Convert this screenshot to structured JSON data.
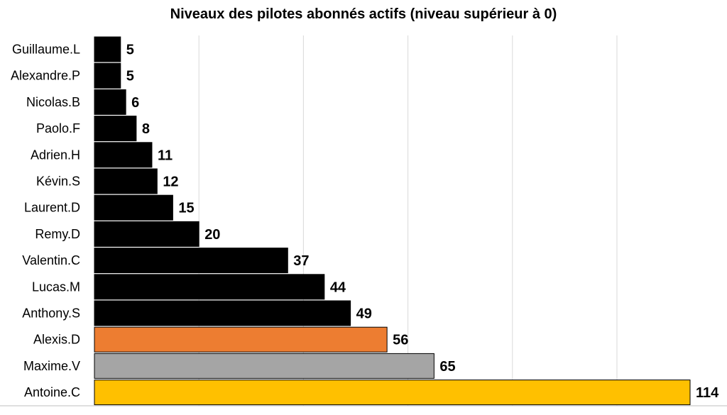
{
  "chart_data": {
    "type": "bar",
    "orientation": "horizontal",
    "title": "Niveaux des pilotes abonnés actifs (niveau supérieur à 0)",
    "xlabel": "",
    "ylabel": "",
    "xlim": [
      0,
      114
    ],
    "grid": true,
    "legend": "none",
    "categories": [
      "Guillaume.L",
      "Alexandre.P",
      "Nicolas.B",
      "Paolo.F",
      "Adrien.H",
      "Kévin.S",
      "Laurent.D",
      "Remy.D",
      "Valentin.C",
      "Lucas.M",
      "Anthony.S",
      "Alexis.D",
      "Maxime.V",
      "Antoine.C"
    ],
    "values": [
      5,
      5,
      6,
      8,
      11,
      12,
      15,
      20,
      37,
      44,
      49,
      56,
      65,
      114
    ],
    "bar_colors": [
      "#000000",
      "#000000",
      "#000000",
      "#000000",
      "#000000",
      "#000000",
      "#000000",
      "#000000",
      "#000000",
      "#000000",
      "#000000",
      "#ED7D31",
      "#A5A5A5",
      "#FFC000"
    ],
    "gridline_color": "#D9D9D9",
    "axis_color": "#BFBFBF"
  }
}
